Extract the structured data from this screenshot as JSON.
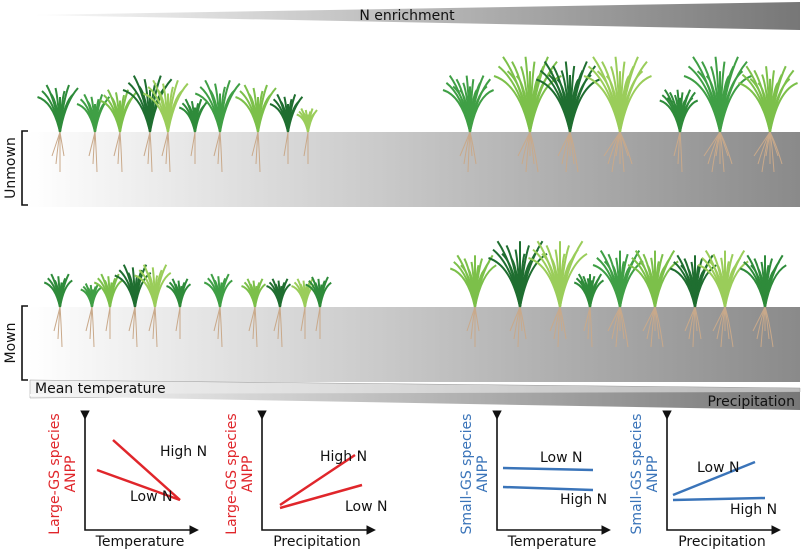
{
  "header": {
    "title": "N enrichment"
  },
  "rows": [
    {
      "label": "Unmown"
    },
    {
      "label": "Mown"
    }
  ],
  "gradients": {
    "temperature": "Mean temperature",
    "precipitation": "Precipitation"
  },
  "panels": [
    {
      "y_label": "Large-GS species",
      "y_unit": "ANPP",
      "x_label": "Temperature",
      "lines": [
        "High N",
        "Low N"
      ]
    },
    {
      "y_label": "Large-GS species",
      "y_unit": "ANPP",
      "x_label": "Precipitation",
      "lines": [
        "High N",
        "Low N"
      ]
    },
    {
      "y_label": "Small-GS species",
      "y_unit": "ANPP",
      "x_label": "Temperature",
      "lines": [
        "Low N",
        "High N"
      ]
    },
    {
      "y_label": "Small-GS species",
      "y_unit": "ANPP",
      "x_label": "Precipitation",
      "lines": [
        "Low N",
        "High N"
      ]
    }
  ]
}
